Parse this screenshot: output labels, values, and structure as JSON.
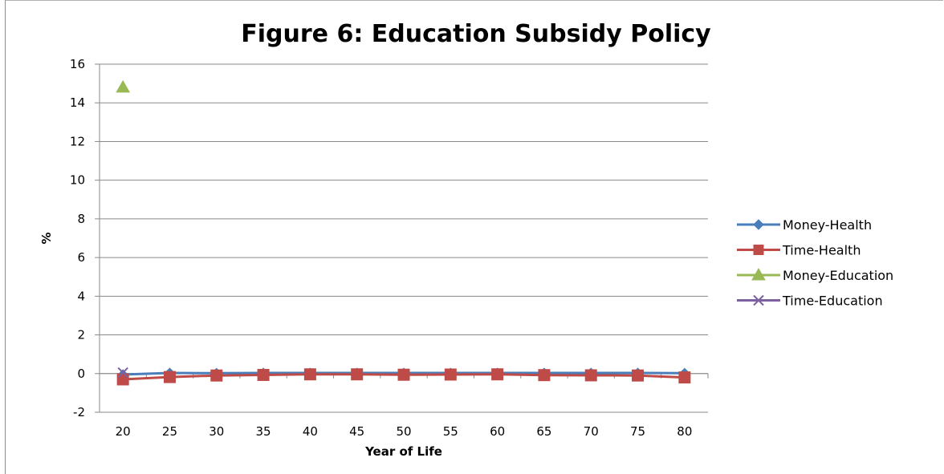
{
  "chart_data": {
    "type": "line",
    "title": "Figure 6: Education Subsidy Policy",
    "xlabel": "Year of Life",
    "ylabel": "%",
    "x": [
      20,
      25,
      30,
      35,
      40,
      45,
      50,
      55,
      60,
      65,
      70,
      75,
      80
    ],
    "ylim": [
      -2,
      16
    ],
    "yticks": [
      -2,
      0,
      2,
      4,
      6,
      8,
      10,
      12,
      14,
      16
    ],
    "grid": "horizontal",
    "legend_position": "right",
    "series": [
      {
        "name": "Money-Health",
        "color": "#4a7ebb",
        "marker": "diamond",
        "values": [
          -0.05,
          0.03,
          0.02,
          0.03,
          0.03,
          0.03,
          0.03,
          0.03,
          0.03,
          0.03,
          0.03,
          0.03,
          0.02
        ]
      },
      {
        "name": "Time-Health",
        "color": "#be4b48",
        "marker": "square",
        "values": [
          -0.3,
          -0.18,
          -0.1,
          -0.07,
          -0.04,
          -0.04,
          -0.06,
          -0.05,
          -0.04,
          -0.08,
          -0.09,
          -0.1,
          -0.2
        ]
      },
      {
        "name": "Money-Education",
        "color": "#98b954",
        "marker": "triangle",
        "values": [
          14.8,
          null,
          null,
          null,
          null,
          null,
          null,
          null,
          null,
          null,
          null,
          null,
          null
        ]
      },
      {
        "name": "Time-Education",
        "color": "#7d60a0",
        "marker": "x",
        "values": [
          0.05,
          null,
          null,
          null,
          null,
          null,
          null,
          null,
          null,
          null,
          null,
          null,
          null
        ]
      }
    ]
  }
}
